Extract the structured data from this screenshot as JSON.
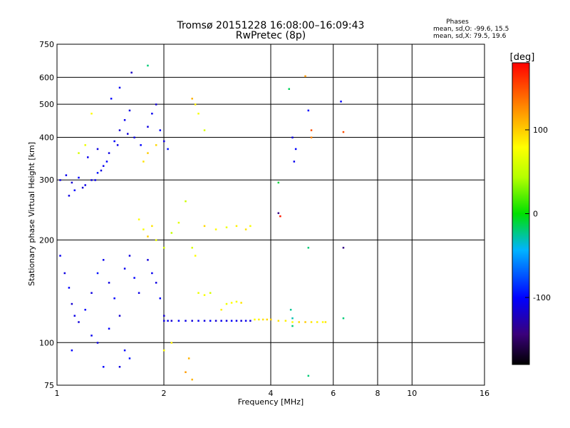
{
  "chart_data": {
    "type": "scatter",
    "title": "Tromsø 20151228 16:08:00–16:09:43",
    "subtitle": "RwPretec (8p)",
    "xlabel": "Frequency [MHz]",
    "ylabel": "Stationary phase Virtual Height [km]",
    "x_scale": "log",
    "y_scale": "log",
    "xlim": [
      1,
      16
    ],
    "ylim": [
      75,
      750
    ],
    "x_ticks": [
      1,
      2,
      4,
      6,
      8,
      10,
      16
    ],
    "y_ticks": [
      75,
      100,
      200,
      300,
      400,
      500,
      600,
      750
    ],
    "x_grid": [
      2,
      4,
      6,
      8,
      10
    ],
    "y_grid": [
      100,
      200,
      300,
      400,
      500,
      600
    ],
    "grid": true,
    "phases_box": {
      "title": "Phases",
      "line1": "mean, sd,O: -99.6, 15.5",
      "line2": "mean, sd,X:  79.5, 19.6"
    },
    "colorbar": {
      "label": "[deg]",
      "range": [
        -180,
        180
      ],
      "ticks": [
        100,
        0,
        -100
      ],
      "tick_labels": [
        "100",
        "0",
        "-100"
      ],
      "placement": "right"
    },
    "series": [
      {
        "name": "",
        "color_by": "phase [deg]",
        "points": [
          [
            1.02,
            300,
            -110
          ],
          [
            1.06,
            310,
            -105
          ],
          [
            1.1,
            295,
            -115
          ],
          [
            1.15,
            305,
            -100
          ],
          [
            1.2,
            290,
            -108
          ],
          [
            1.25,
            300,
            -112
          ],
          [
            1.3,
            315,
            -95
          ],
          [
            1.35,
            330,
            -105
          ],
          [
            1.4,
            360,
            -110
          ],
          [
            1.45,
            390,
            -100
          ],
          [
            1.5,
            420,
            -115
          ],
          [
            1.55,
            450,
            -105
          ],
          [
            1.6,
            480,
            -110
          ],
          [
            1.42,
            520,
            -100
          ],
          [
            1.5,
            560,
            -105
          ],
          [
            1.62,
            620,
            -120
          ],
          [
            1.65,
            400,
            -108
          ],
          [
            1.72,
            380,
            -100
          ],
          [
            1.8,
            430,
            -110
          ],
          [
            1.85,
            470,
            -105
          ],
          [
            1.9,
            500,
            -115
          ],
          [
            1.95,
            420,
            -100
          ],
          [
            2.0,
            390,
            -110
          ],
          [
            2.05,
            370,
            -95
          ],
          [
            1.08,
            270,
            -110
          ],
          [
            1.12,
            280,
            -100
          ],
          [
            1.18,
            285,
            -115
          ],
          [
            1.28,
            300,
            -105
          ],
          [
            1.33,
            320,
            -110
          ],
          [
            1.38,
            340,
            -100
          ],
          [
            1.48,
            380,
            -108
          ],
          [
            1.58,
            410,
            -112
          ],
          [
            1.22,
            350,
            -105
          ],
          [
            1.3,
            370,
            -110
          ],
          [
            1.15,
            360,
            60
          ],
          [
            1.2,
            380,
            70
          ],
          [
            1.25,
            470,
            80
          ],
          [
            1.75,
            340,
            90
          ],
          [
            1.8,
            360,
            100
          ],
          [
            1.9,
            380,
            95
          ],
          [
            2.4,
            520,
            110
          ],
          [
            2.45,
            500,
            85
          ],
          [
            2.5,
            470,
            75
          ],
          [
            2.6,
            420,
            60
          ],
          [
            2.3,
            260,
            55
          ],
          [
            1.7,
            230,
            80
          ],
          [
            1.75,
            215,
            75
          ],
          [
            1.8,
            205,
            100
          ],
          [
            1.85,
            220,
            90
          ],
          [
            1.9,
            200,
            70
          ],
          [
            2.0,
            190,
            60
          ],
          [
            2.1,
            210,
            50
          ],
          [
            2.2,
            225,
            65
          ],
          [
            2.6,
            220,
            95
          ],
          [
            2.8,
            215,
            80
          ],
          [
            3.0,
            218,
            70
          ],
          [
            3.2,
            220,
            85
          ],
          [
            3.4,
            215,
            90
          ],
          [
            3.5,
            220,
            75
          ],
          [
            1.02,
            180,
            -105
          ],
          [
            1.05,
            160,
            -110
          ],
          [
            1.08,
            145,
            -100
          ],
          [
            1.1,
            130,
            -115
          ],
          [
            1.12,
            120,
            -108
          ],
          [
            1.15,
            115,
            -112
          ],
          [
            1.2,
            125,
            -100
          ],
          [
            1.25,
            140,
            -110
          ],
          [
            1.3,
            160,
            -95
          ],
          [
            1.35,
            175,
            -105
          ],
          [
            1.4,
            150,
            -110
          ],
          [
            1.45,
            135,
            -100
          ],
          [
            1.5,
            120,
            -115
          ],
          [
            1.55,
            165,
            -105
          ],
          [
            1.6,
            180,
            -110
          ],
          [
            1.65,
            155,
            -100
          ],
          [
            1.7,
            140,
            -108
          ],
          [
            1.8,
            175,
            -112
          ],
          [
            1.85,
            160,
            -105
          ],
          [
            1.9,
            150,
            -110
          ],
          [
            1.95,
            135,
            -100
          ],
          [
            2.0,
            120,
            -115
          ],
          [
            1.3,
            100,
            -110
          ],
          [
            1.25,
            105,
            -105
          ],
          [
            1.4,
            110,
            -100
          ],
          [
            1.6,
            90,
            -95
          ],
          [
            1.1,
            95,
            -100
          ],
          [
            2.0,
            116,
            -110
          ],
          [
            2.05,
            116,
            -105
          ],
          [
            2.1,
            116,
            -115
          ],
          [
            2.2,
            116,
            -100
          ],
          [
            2.3,
            116,
            -108
          ],
          [
            2.4,
            116,
            -112
          ],
          [
            2.5,
            116,
            -105
          ],
          [
            2.6,
            116,
            -110
          ],
          [
            2.7,
            116,
            -100
          ],
          [
            2.8,
            116,
            -115
          ],
          [
            2.9,
            116,
            -105
          ],
          [
            3.0,
            116,
            -110
          ],
          [
            3.1,
            116,
            -100
          ],
          [
            3.2,
            116,
            -108
          ],
          [
            3.3,
            116,
            -112
          ],
          [
            3.4,
            116,
            -105
          ],
          [
            3.5,
            116,
            -110
          ],
          [
            3.6,
            117,
            80
          ],
          [
            3.7,
            117,
            85
          ],
          [
            3.8,
            117,
            90
          ],
          [
            3.9,
            117,
            95
          ],
          [
            4.0,
            117,
            100
          ],
          [
            4.2,
            116,
            90
          ],
          [
            4.4,
            116,
            85
          ],
          [
            4.6,
            115,
            80
          ],
          [
            4.8,
            115,
            95
          ],
          [
            5.0,
            115,
            100
          ],
          [
            5.2,
            115,
            90
          ],
          [
            5.4,
            115,
            85
          ],
          [
            5.6,
            115,
            80
          ],
          [
            5.7,
            115,
            90
          ],
          [
            3.0,
            130,
            70
          ],
          [
            3.1,
            131,
            80
          ],
          [
            3.2,
            132,
            75
          ],
          [
            3.3,
            131,
            90
          ],
          [
            2.9,
            125,
            85
          ],
          [
            4.6,
            112,
            -20
          ],
          [
            4.6,
            118,
            -30
          ],
          [
            4.55,
            125,
            -25
          ],
          [
            5.1,
            190,
            -20
          ],
          [
            5.1,
            80,
            -20
          ],
          [
            6.4,
            118,
            -20
          ],
          [
            6.4,
            190,
            -140
          ],
          [
            5.1,
            480,
            -100
          ],
          [
            6.3,
            510,
            -100
          ],
          [
            5.2,
            420,
            150
          ],
          [
            5.2,
            400,
            130
          ],
          [
            6.4,
            415,
            150
          ],
          [
            4.5,
            555,
            -15
          ],
          [
            4.6,
            400,
            -110
          ],
          [
            4.7,
            370,
            -100
          ],
          [
            4.65,
            340,
            -105
          ],
          [
            4.2,
            295,
            -10
          ],
          [
            4.2,
            240,
            -140
          ],
          [
            4.25,
            235,
            170
          ],
          [
            5.0,
            605,
            120
          ],
          [
            1.8,
            650,
            -20
          ],
          [
            2.4,
            190,
            60
          ],
          [
            2.45,
            180,
            80
          ],
          [
            2.5,
            140,
            70
          ],
          [
            2.6,
            138,
            75
          ],
          [
            2.7,
            140,
            60
          ],
          [
            2.0,
            95,
            80
          ],
          [
            2.1,
            100,
            85
          ],
          [
            2.35,
            90,
            110
          ],
          [
            2.3,
            82,
            120
          ],
          [
            2.4,
            78,
            110
          ],
          [
            1.35,
            85,
            -100
          ],
          [
            1.5,
            85,
            -110
          ],
          [
            1.55,
            95,
            -100
          ]
        ]
      }
    ]
  }
}
